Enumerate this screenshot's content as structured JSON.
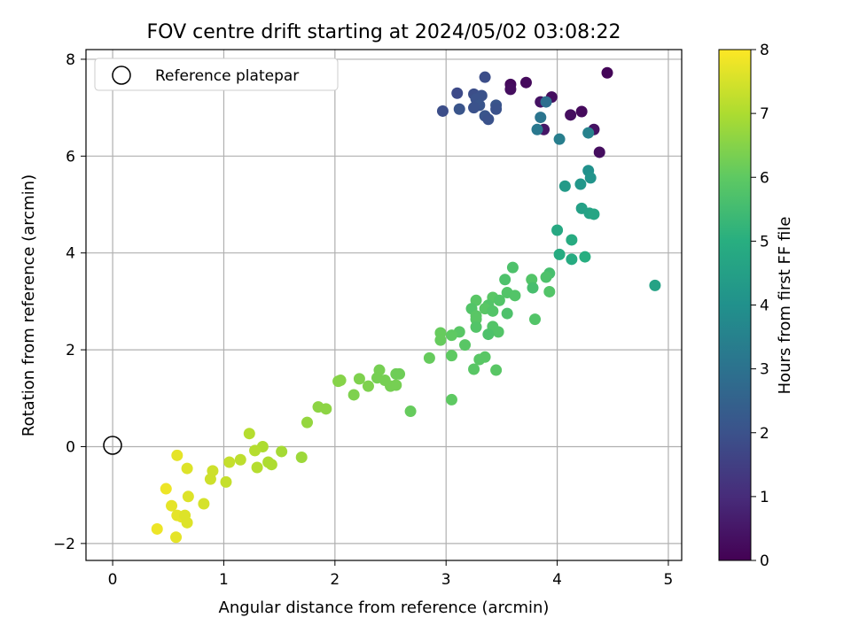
{
  "chart_data": {
    "type": "scatter",
    "title": "FOV centre drift starting at 2024/05/02 03:08:22",
    "xlabel": "Angular distance from reference (arcmin)",
    "ylabel": "Rotation from reference (arcmin)",
    "xlim": [
      -0.24,
      5.12
    ],
    "ylim": [
      -2.35,
      8.2
    ],
    "xticks": [
      0,
      1,
      2,
      3,
      4,
      5
    ],
    "yticks": [
      -2,
      0,
      2,
      4,
      6,
      8
    ],
    "grid": true,
    "legend": {
      "position": "top-left",
      "entries": [
        "Reference platepar"
      ]
    },
    "reference_point": {
      "x": 0,
      "y": 0
    },
    "colorbar": {
      "label": "Hours from first FF file",
      "range": [
        0,
        8
      ],
      "ticks": [
        0,
        1,
        2,
        3,
        4,
        5,
        6,
        7,
        8
      ],
      "colormap": "viridis"
    },
    "series": [
      {
        "points": [
          {
            "x": 4.45,
            "y": 7.72,
            "c": 0.1
          },
          {
            "x": 3.72,
            "y": 7.52,
            "c": 0.2
          },
          {
            "x": 3.58,
            "y": 7.48,
            "c": 0.2
          },
          {
            "x": 3.58,
            "y": 7.38,
            "c": 0.3
          },
          {
            "x": 3.95,
            "y": 7.22,
            "c": 0.3
          },
          {
            "x": 3.85,
            "y": 7.12,
            "c": 0.4
          },
          {
            "x": 4.22,
            "y": 6.92,
            "c": 0.2
          },
          {
            "x": 4.12,
            "y": 6.85,
            "c": 0.3
          },
          {
            "x": 4.33,
            "y": 6.55,
            "c": 0.4
          },
          {
            "x": 3.88,
            "y": 6.55,
            "c": 0.5
          },
          {
            "x": 4.38,
            "y": 6.08,
            "c": 0.3
          },
          {
            "x": 3.35,
            "y": 7.63,
            "c": 1.9
          },
          {
            "x": 3.1,
            "y": 7.3,
            "c": 1.8
          },
          {
            "x": 3.25,
            "y": 7.28,
            "c": 1.9
          },
          {
            "x": 3.32,
            "y": 7.25,
            "c": 2.0
          },
          {
            "x": 3.27,
            "y": 7.18,
            "c": 2.0
          },
          {
            "x": 3.3,
            "y": 7.05,
            "c": 2.1
          },
          {
            "x": 3.25,
            "y": 7.0,
            "c": 2.0
          },
          {
            "x": 3.12,
            "y": 6.97,
            "c": 2.1
          },
          {
            "x": 2.97,
            "y": 6.93,
            "c": 1.9
          },
          {
            "x": 3.45,
            "y": 7.05,
            "c": 2.1
          },
          {
            "x": 3.45,
            "y": 6.97,
            "c": 2.0
          },
          {
            "x": 3.35,
            "y": 6.83,
            "c": 2.1
          },
          {
            "x": 3.38,
            "y": 6.76,
            "c": 2.0
          },
          {
            "x": 3.9,
            "y": 7.12,
            "c": 2.9
          },
          {
            "x": 3.85,
            "y": 6.8,
            "c": 3.1
          },
          {
            "x": 3.82,
            "y": 6.55,
            "c": 3.2
          },
          {
            "x": 4.02,
            "y": 6.35,
            "c": 3.4
          },
          {
            "x": 4.28,
            "y": 6.48,
            "c": 3.5
          },
          {
            "x": 4.28,
            "y": 5.7,
            "c": 4.0
          },
          {
            "x": 4.3,
            "y": 5.55,
            "c": 4.1
          },
          {
            "x": 4.07,
            "y": 5.38,
            "c": 4.3
          },
          {
            "x": 4.21,
            "y": 5.42,
            "c": 4.2
          },
          {
            "x": 4.22,
            "y": 4.92,
            "c": 4.5
          },
          {
            "x": 4.29,
            "y": 4.82,
            "c": 4.6
          },
          {
            "x": 4.33,
            "y": 4.8,
            "c": 4.7
          },
          {
            "x": 4.0,
            "y": 4.47,
            "c": 4.8
          },
          {
            "x": 4.13,
            "y": 4.27,
            "c": 4.9
          },
          {
            "x": 4.02,
            "y": 3.97,
            "c": 4.9
          },
          {
            "x": 4.13,
            "y": 3.87,
            "c": 4.9
          },
          {
            "x": 4.25,
            "y": 3.92,
            "c": 5.0
          },
          {
            "x": 4.88,
            "y": 3.33,
            "c": 4.6
          },
          {
            "x": 3.6,
            "y": 3.7,
            "c": 5.7
          },
          {
            "x": 3.93,
            "y": 3.58,
            "c": 5.6
          },
          {
            "x": 3.9,
            "y": 3.5,
            "c": 5.7
          },
          {
            "x": 3.77,
            "y": 3.45,
            "c": 5.8
          },
          {
            "x": 3.53,
            "y": 3.45,
            "c": 5.7
          },
          {
            "x": 3.78,
            "y": 3.28,
            "c": 5.6
          },
          {
            "x": 3.93,
            "y": 3.2,
            "c": 5.8
          },
          {
            "x": 3.55,
            "y": 3.18,
            "c": 5.8
          },
          {
            "x": 3.62,
            "y": 3.12,
            "c": 5.8
          },
          {
            "x": 3.42,
            "y": 3.08,
            "c": 5.9
          },
          {
            "x": 3.48,
            "y": 3.02,
            "c": 5.8
          },
          {
            "x": 3.27,
            "y": 3.02,
            "c": 5.9
          },
          {
            "x": 3.38,
            "y": 2.92,
            "c": 5.8
          },
          {
            "x": 3.35,
            "y": 2.85,
            "c": 5.9
          },
          {
            "x": 3.23,
            "y": 2.85,
            "c": 5.8
          },
          {
            "x": 3.42,
            "y": 2.8,
            "c": 5.8
          },
          {
            "x": 3.55,
            "y": 2.75,
            "c": 5.7
          },
          {
            "x": 3.27,
            "y": 2.7,
            "c": 5.9
          },
          {
            "x": 3.8,
            "y": 2.63,
            "c": 5.8
          },
          {
            "x": 3.27,
            "y": 2.63,
            "c": 5.9
          },
          {
            "x": 3.42,
            "y": 2.48,
            "c": 5.8
          },
          {
            "x": 3.27,
            "y": 2.47,
            "c": 5.8
          },
          {
            "x": 3.47,
            "y": 2.37,
            "c": 5.8
          },
          {
            "x": 3.12,
            "y": 2.37,
            "c": 5.9
          },
          {
            "x": 3.38,
            "y": 2.32,
            "c": 5.7
          },
          {
            "x": 3.05,
            "y": 2.3,
            "c": 6.0
          },
          {
            "x": 2.95,
            "y": 2.35,
            "c": 6.1
          },
          {
            "x": 2.95,
            "y": 2.2,
            "c": 6.1
          },
          {
            "x": 3.17,
            "y": 2.1,
            "c": 5.9
          },
          {
            "x": 3.05,
            "y": 1.88,
            "c": 6.0
          },
          {
            "x": 2.85,
            "y": 1.83,
            "c": 6.1
          },
          {
            "x": 3.35,
            "y": 1.85,
            "c": 5.9
          },
          {
            "x": 3.3,
            "y": 1.8,
            "c": 5.9
          },
          {
            "x": 3.25,
            "y": 1.6,
            "c": 5.9
          },
          {
            "x": 3.45,
            "y": 1.58,
            "c": 5.9
          },
          {
            "x": 3.05,
            "y": 0.97,
            "c": 6.0
          },
          {
            "x": 2.68,
            "y": 0.73,
            "c": 6.1
          },
          {
            "x": 2.4,
            "y": 1.58,
            "c": 6.3
          },
          {
            "x": 2.55,
            "y": 1.5,
            "c": 6.2
          },
          {
            "x": 2.58,
            "y": 1.5,
            "c": 6.2
          },
          {
            "x": 2.38,
            "y": 1.42,
            "c": 6.3
          },
          {
            "x": 2.45,
            "y": 1.37,
            "c": 6.3
          },
          {
            "x": 2.22,
            "y": 1.4,
            "c": 6.4
          },
          {
            "x": 2.05,
            "y": 1.37,
            "c": 6.5
          },
          {
            "x": 2.03,
            "y": 1.35,
            "c": 6.5
          },
          {
            "x": 2.5,
            "y": 1.25,
            "c": 6.3
          },
          {
            "x": 2.55,
            "y": 1.27,
            "c": 6.3
          },
          {
            "x": 2.3,
            "y": 1.25,
            "c": 6.4
          },
          {
            "x": 2.17,
            "y": 1.07,
            "c": 6.4
          },
          {
            "x": 1.85,
            "y": 0.82,
            "c": 6.6
          },
          {
            "x": 1.92,
            "y": 0.78,
            "c": 6.6
          },
          {
            "x": 1.75,
            "y": 0.5,
            "c": 6.7
          },
          {
            "x": 1.23,
            "y": 0.27,
            "c": 7.1
          },
          {
            "x": 1.35,
            "y": 0.0,
            "c": 7.0
          },
          {
            "x": 1.28,
            "y": -0.08,
            "c": 7.1
          },
          {
            "x": 1.52,
            "y": -0.1,
            "c": 6.9
          },
          {
            "x": 1.7,
            "y": -0.22,
            "c": 6.8
          },
          {
            "x": 1.15,
            "y": -0.27,
            "c": 7.2
          },
          {
            "x": 1.05,
            "y": -0.32,
            "c": 7.3
          },
          {
            "x": 1.4,
            "y": -0.32,
            "c": 7.0
          },
          {
            "x": 1.43,
            "y": -0.37,
            "c": 7.0
          },
          {
            "x": 1.3,
            "y": -0.43,
            "c": 7.1
          },
          {
            "x": 0.58,
            "y": -0.18,
            "c": 7.7
          },
          {
            "x": 0.67,
            "y": -0.45,
            "c": 7.6
          },
          {
            "x": 0.9,
            "y": -0.5,
            "c": 7.4
          },
          {
            "x": 0.88,
            "y": -0.67,
            "c": 7.4
          },
          {
            "x": 1.02,
            "y": -0.73,
            "c": 7.3
          },
          {
            "x": 0.48,
            "y": -0.87,
            "c": 7.8
          },
          {
            "x": 0.68,
            "y": -1.03,
            "c": 7.6
          },
          {
            "x": 0.82,
            "y": -1.18,
            "c": 7.5
          },
          {
            "x": 0.53,
            "y": -1.22,
            "c": 7.7
          },
          {
            "x": 0.58,
            "y": -1.42,
            "c": 7.7
          },
          {
            "x": 0.62,
            "y": -1.45,
            "c": 7.7
          },
          {
            "x": 0.65,
            "y": -1.42,
            "c": 7.6
          },
          {
            "x": 0.67,
            "y": -1.57,
            "c": 7.6
          },
          {
            "x": 0.4,
            "y": -1.7,
            "c": 7.8
          },
          {
            "x": 0.57,
            "y": -1.87,
            "c": 7.7
          }
        ]
      }
    ]
  }
}
